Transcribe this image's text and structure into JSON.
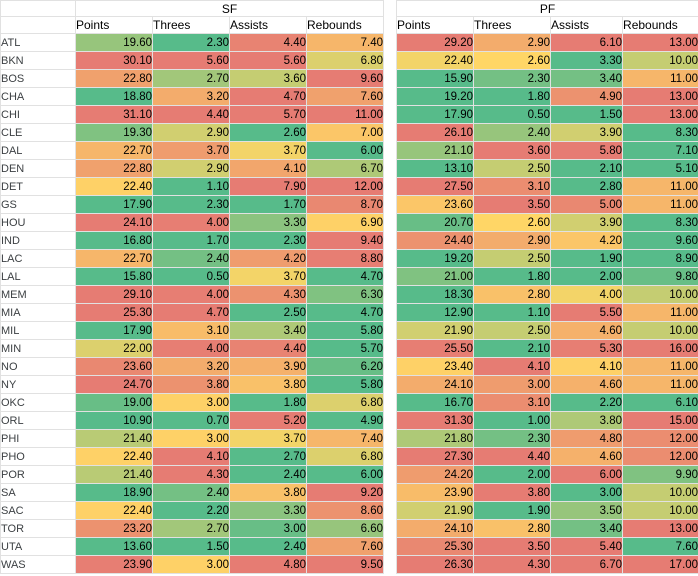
{
  "chart_data": {
    "type": "heatmap",
    "layout": "table with per-column red-yellow-green conditional formatting; low values green, high values red",
    "column_groups": [
      {
        "label": "SF",
        "columns": [
          "Points",
          "Threes",
          "Assists",
          "Rebounds"
        ]
      },
      {
        "label": "PF",
        "columns": [
          "Points",
          "Threes",
          "Assists",
          "Rebounds"
        ]
      }
    ],
    "color_scale": {
      "low": "#57BB8A",
      "mid": "#FFD666",
      "high": "#E67C73"
    },
    "value_format": "0.00",
    "rows": [
      {
        "team": "ATL",
        "sf": [
          19.6,
          2.3,
          4.4,
          7.4
        ],
        "pf": [
          29.2,
          2.9,
          6.1,
          13.0
        ]
      },
      {
        "team": "BKN",
        "sf": [
          30.1,
          5.6,
          5.6,
          6.8
        ],
        "pf": [
          22.4,
          2.6,
          3.3,
          10.0
        ]
      },
      {
        "team": "BOS",
        "sf": [
          22.8,
          2.7,
          3.6,
          9.6
        ],
        "pf": [
          15.9,
          2.3,
          3.4,
          11.0
        ]
      },
      {
        "team": "CHA",
        "sf": [
          18.8,
          3.2,
          4.7,
          7.6
        ],
        "pf": [
          19.2,
          1.8,
          4.9,
          13.0
        ]
      },
      {
        "team": "CHI",
        "sf": [
          31.1,
          4.4,
          5.7,
          11.0
        ],
        "pf": [
          17.9,
          0.5,
          1.5,
          13.0
        ]
      },
      {
        "team": "CLE",
        "sf": [
          19.3,
          2.9,
          2.6,
          7.0
        ],
        "pf": [
          26.1,
          2.4,
          3.9,
          8.3
        ]
      },
      {
        "team": "DAL",
        "sf": [
          22.7,
          3.7,
          3.7,
          6.0
        ],
        "pf": [
          21.1,
          3.6,
          5.8,
          7.1
        ]
      },
      {
        "team": "DEN",
        "sf": [
          22.8,
          2.9,
          4.1,
          6.7
        ],
        "pf": [
          13.1,
          2.5,
          2.1,
          5.1
        ]
      },
      {
        "team": "DET",
        "sf": [
          22.4,
          1.1,
          7.9,
          12.0
        ],
        "pf": [
          27.5,
          3.1,
          2.8,
          11.0
        ]
      },
      {
        "team": "GS",
        "sf": [
          17.9,
          2.3,
          1.7,
          8.7
        ],
        "pf": [
          23.6,
          3.5,
          5.0,
          11.0
        ]
      },
      {
        "team": "HOU",
        "sf": [
          24.1,
          4.0,
          3.3,
          6.9
        ],
        "pf": [
          20.7,
          2.6,
          3.9,
          8.3
        ]
      },
      {
        "team": "IND",
        "sf": [
          16.8,
          1.7,
          2.3,
          9.4
        ],
        "pf": [
          24.4,
          2.9,
          4.2,
          9.6
        ]
      },
      {
        "team": "LAC",
        "sf": [
          22.7,
          2.4,
          4.2,
          8.8
        ],
        "pf": [
          19.2,
          2.5,
          1.9,
          8.9
        ]
      },
      {
        "team": "LAL",
        "sf": [
          15.8,
          0.5,
          3.7,
          4.7
        ],
        "pf": [
          21.0,
          1.8,
          2.0,
          9.8
        ]
      },
      {
        "team": "MEM",
        "sf": [
          29.1,
          4.0,
          4.3,
          6.3
        ],
        "pf": [
          18.3,
          2.8,
          4.0,
          10.0
        ]
      },
      {
        "team": "MIA",
        "sf": [
          25.3,
          4.7,
          2.5,
          4.7
        ],
        "pf": [
          12.9,
          1.1,
          5.5,
          11.0
        ]
      },
      {
        "team": "MIL",
        "sf": [
          17.9,
          3.1,
          3.4,
          5.8
        ],
        "pf": [
          21.9,
          2.5,
          4.6,
          10.0
        ]
      },
      {
        "team": "MIN",
        "sf": [
          22.0,
          4.0,
          4.4,
          5.7
        ],
        "pf": [
          25.5,
          2.1,
          5.3,
          16.0
        ]
      },
      {
        "team": "NO",
        "sf": [
          23.6,
          3.2,
          3.9,
          6.2
        ],
        "pf": [
          23.4,
          4.1,
          4.1,
          11.0
        ]
      },
      {
        "team": "NY",
        "sf": [
          24.7,
          3.8,
          3.8,
          5.8
        ],
        "pf": [
          24.1,
          3.0,
          4.6,
          11.0
        ]
      },
      {
        "team": "OKC",
        "sf": [
          19.0,
          3.0,
          1.8,
          6.8
        ],
        "pf": [
          16.7,
          3.1,
          2.2,
          6.1
        ]
      },
      {
        "team": "ORL",
        "sf": [
          10.9,
          0.7,
          5.2,
          4.9
        ],
        "pf": [
          31.3,
          1.0,
          3.8,
          15.0
        ]
      },
      {
        "team": "PHI",
        "sf": [
          21.4,
          3.0,
          3.7,
          7.4
        ],
        "pf": [
          21.8,
          2.3,
          4.8,
          12.0
        ]
      },
      {
        "team": "PHO",
        "sf": [
          22.4,
          4.1,
          2.7,
          6.8
        ],
        "pf": [
          27.3,
          4.4,
          4.6,
          12.0
        ]
      },
      {
        "team": "POR",
        "sf": [
          21.4,
          4.3,
          2.4,
          6.0
        ],
        "pf": [
          24.2,
          2.0,
          6.0,
          9.9
        ]
      },
      {
        "team": "SA",
        "sf": [
          18.9,
          2.4,
          3.8,
          9.2
        ],
        "pf": [
          23.9,
          3.8,
          3.0,
          10.0
        ]
      },
      {
        "team": "SAC",
        "sf": [
          22.4,
          2.2,
          3.3,
          8.6
        ],
        "pf": [
          21.9,
          1.9,
          3.5,
          10.0
        ]
      },
      {
        "team": "TOR",
        "sf": [
          23.2,
          2.7,
          3.0,
          6.6
        ],
        "pf": [
          24.1,
          2.8,
          3.4,
          13.0
        ]
      },
      {
        "team": "UTA",
        "sf": [
          13.6,
          1.5,
          2.4,
          7.6
        ],
        "pf": [
          25.3,
          3.5,
          5.4,
          7.6
        ]
      },
      {
        "team": "WAS",
        "sf": [
          23.9,
          3.0,
          4.8,
          9.5
        ],
        "pf": [
          26.3,
          4.3,
          6.7,
          17.0
        ]
      }
    ]
  }
}
